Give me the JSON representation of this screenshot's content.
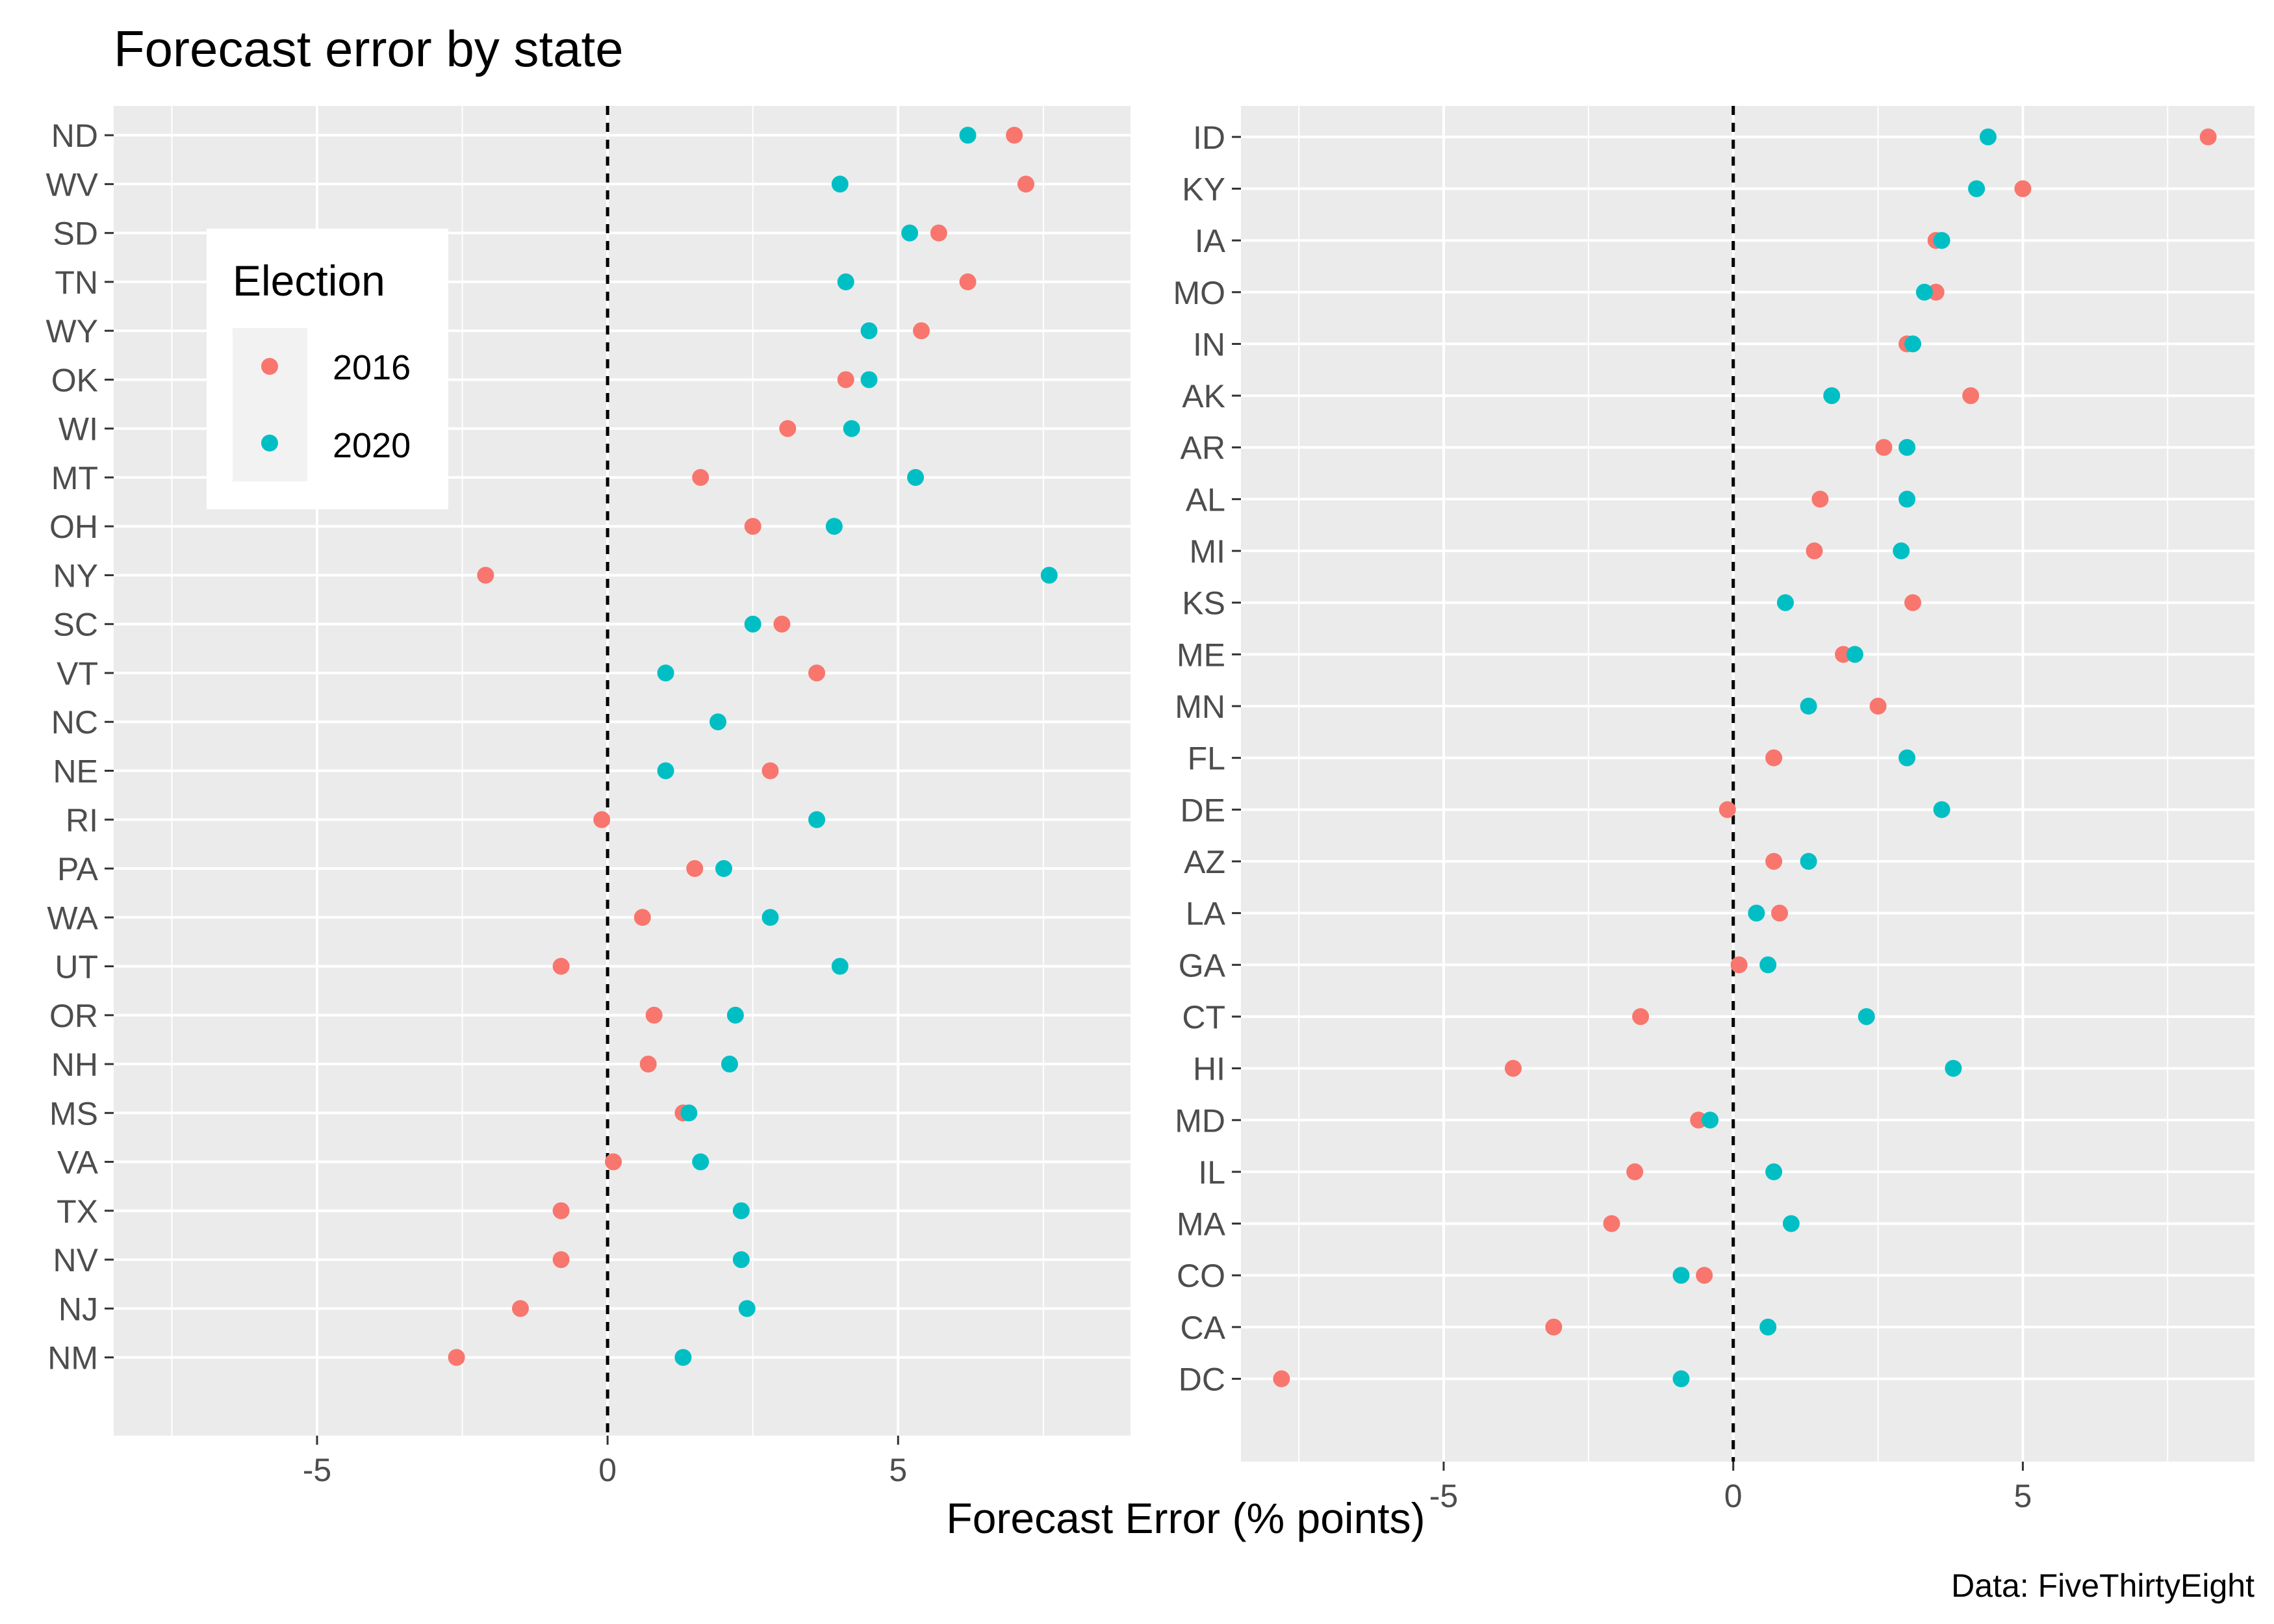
{
  "chart_data": {
    "type": "scatter",
    "title": "Forecast error by state",
    "xlabel": "Forecast Error (% points)",
    "caption": "Data: FiveThirtyEight",
    "xlim": [
      -8.5,
      9.0
    ],
    "xticks": [
      -5,
      0,
      5
    ],
    "xtick_labels": [
      "-5",
      "0",
      "5"
    ],
    "reference_line_x": 0,
    "grid": true,
    "legend": {
      "title": "Election",
      "position": "top-left",
      "entries": [
        "2016",
        "2020"
      ]
    },
    "series": [
      {
        "name": "2016",
        "color": "#F8766D"
      },
      {
        "name": "2020",
        "color": "#00BFC4"
      }
    ],
    "panels": [
      {
        "states": [
          "ND",
          "WV",
          "SD",
          "TN",
          "WY",
          "OK",
          "WI",
          "MT",
          "OH",
          "NY",
          "SC",
          "VT",
          "NC",
          "NE",
          "RI",
          "PA",
          "WA",
          "UT",
          "OR",
          "NH",
          "MS",
          "VA",
          "TX",
          "NV",
          "NJ",
          "NM"
        ],
        "values_2016": [
          7.0,
          7.2,
          5.7,
          6.2,
          5.4,
          4.1,
          3.1,
          1.6,
          2.5,
          -2.1,
          3.0,
          3.6,
          null,
          2.8,
          -0.1,
          1.5,
          0.6,
          -0.8,
          0.8,
          0.7,
          1.3,
          0.1,
          -0.8,
          -0.8,
          -1.5,
          -2.6
        ],
        "values_2020": [
          6.2,
          4.0,
          5.2,
          4.1,
          4.5,
          4.5,
          4.2,
          5.3,
          3.9,
          7.6,
          2.5,
          1.0,
          1.9,
          1.0,
          3.6,
          2.0,
          2.8,
          4.0,
          2.2,
          2.1,
          1.4,
          1.6,
          2.3,
          2.3,
          2.4,
          1.3
        ]
      },
      {
        "states": [
          "ID",
          "KY",
          "IA",
          "MO",
          "IN",
          "AK",
          "AR",
          "AL",
          "MI",
          "KS",
          "ME",
          "MN",
          "FL",
          "DE",
          "AZ",
          "LA",
          "GA",
          "CT",
          "HI",
          "MD",
          "IL",
          "MA",
          "CO",
          "CA",
          "DC"
        ],
        "values_2016": [
          8.2,
          5.0,
          3.5,
          3.5,
          3.0,
          4.1,
          2.6,
          1.5,
          1.4,
          3.1,
          1.9,
          2.5,
          0.7,
          -0.1,
          0.7,
          0.8,
          0.1,
          -1.6,
          -3.8,
          -0.6,
          -1.7,
          -2.1,
          -0.5,
          -3.1,
          -7.8
        ],
        "values_2020": [
          4.4,
          4.2,
          3.6,
          3.3,
          3.1,
          1.7,
          3.0,
          3.0,
          2.9,
          0.9,
          2.1,
          1.3,
          3.0,
          3.6,
          1.3,
          0.4,
          0.6,
          2.3,
          3.8,
          -0.4,
          0.7,
          1.0,
          -0.9,
          0.6,
          -0.9
        ]
      }
    ]
  }
}
